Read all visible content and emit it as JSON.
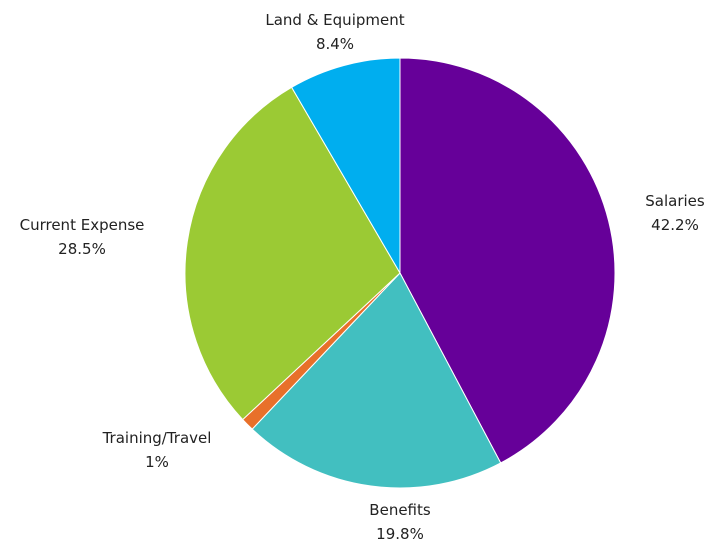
{
  "chart_data": {
    "type": "pie",
    "title": "",
    "slices": [
      {
        "label": "Salaries",
        "value_label": "42.2%",
        "value": 42.2,
        "color": "#660099"
      },
      {
        "label": "Benefits",
        "value_label": "19.8%",
        "value": 19.8,
        "color": "#42BFC0"
      },
      {
        "label": "Training/Travel",
        "value_label": "1%",
        "value": 1.0,
        "color": "#E8702A"
      },
      {
        "label": "Current Expense",
        "value_label": "28.5%",
        "value": 28.5,
        "color": "#9BCA34"
      },
      {
        "label": "Land & Equipment",
        "value_label": "8.4%",
        "value": 8.4,
        "color": "#00AEEF"
      }
    ],
    "start_angle": "12 o'clock",
    "direction": "clockwise",
    "legend": "none"
  }
}
